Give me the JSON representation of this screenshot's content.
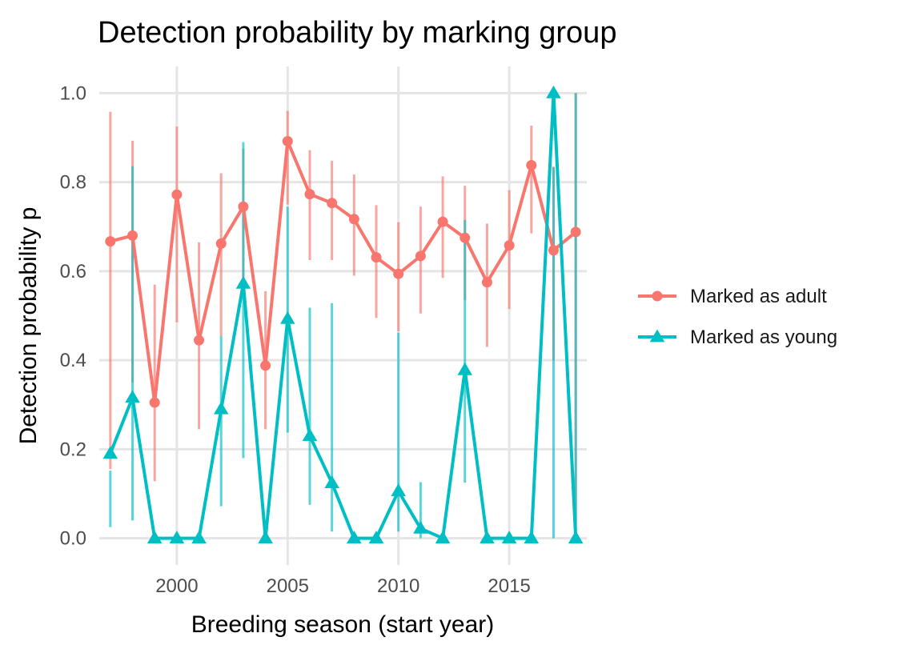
{
  "chart_data": {
    "type": "line",
    "title": "Detection probability by marking group",
    "xlabel": "Breeding season (start year)",
    "ylabel": "Detection probability p",
    "xlim": [
      1996.5,
      2018.5
    ],
    "ylim": [
      -0.06,
      1.06
    ],
    "x_ticks": [
      2000,
      2005,
      2010,
      2015
    ],
    "y_ticks": [
      0.0,
      0.2,
      0.4,
      0.6,
      0.8,
      1.0
    ],
    "x_tick_labels": [
      "2000",
      "2005",
      "2010",
      "2015"
    ],
    "y_tick_labels": [
      "0.0",
      "0.2",
      "0.4",
      "0.6",
      "0.8",
      "1.0"
    ],
    "grid": true,
    "legend_position": "right",
    "x": [
      1997,
      1998,
      1999,
      2000,
      2001,
      2002,
      2003,
      2004,
      2005,
      2006,
      2007,
      2008,
      2009,
      2010,
      2011,
      2012,
      2013,
      2014,
      2015,
      2016,
      2017,
      2018
    ],
    "series": [
      {
        "name": "Marked as adult",
        "color": "#f8766d",
        "marker": "circle",
        "values": [
          0.667,
          0.68,
          0.305,
          0.772,
          0.445,
          0.662,
          0.745,
          0.388,
          0.892,
          0.773,
          0.753,
          0.717,
          0.631,
          0.594,
          0.634,
          0.711,
          0.675,
          0.575,
          0.658,
          0.838,
          0.647,
          0.688
        ],
        "lower": [
          0.155,
          0.35,
          0.128,
          0.485,
          0.245,
          0.455,
          0.55,
          0.245,
          0.75,
          0.625,
          0.625,
          0.59,
          0.495,
          0.465,
          0.505,
          0.585,
          0.535,
          0.43,
          0.515,
          0.685,
          0.4,
          0.0
        ],
        "upper": [
          0.958,
          0.893,
          0.57,
          0.925,
          0.665,
          0.82,
          0.875,
          0.555,
          0.96,
          0.872,
          0.848,
          0.817,
          0.748,
          0.71,
          0.745,
          0.813,
          0.792,
          0.707,
          0.782,
          0.927,
          0.835,
          1.0
        ]
      },
      {
        "name": "Marked as young",
        "color": "#00bfc4",
        "marker": "triangle",
        "values": [
          0.19,
          0.316,
          0.0,
          0.0,
          0.0,
          0.29,
          0.572,
          0.0,
          0.493,
          0.23,
          0.124,
          0.0,
          0.0,
          0.106,
          0.022,
          0.0,
          0.378,
          0.0,
          0.0,
          0.0,
          1.0,
          0.0
        ],
        "lower": [
          0.025,
          0.04,
          0.0,
          0.0,
          0.0,
          0.072,
          0.18,
          0.0,
          0.237,
          0.075,
          0.015,
          0.0,
          0.0,
          0.015,
          0.0,
          0.0,
          0.125,
          0.0,
          0.0,
          0.0,
          0.0,
          0.0
        ],
        "upper": [
          0.152,
          0.836,
          0.0,
          0.0,
          0.0,
          0.455,
          0.89,
          0.0,
          0.745,
          0.518,
          0.528,
          0.0,
          0.0,
          0.462,
          0.126,
          0.0,
          0.715,
          0.0,
          0.0,
          0.0,
          0.833,
          1.0
        ]
      }
    ]
  }
}
